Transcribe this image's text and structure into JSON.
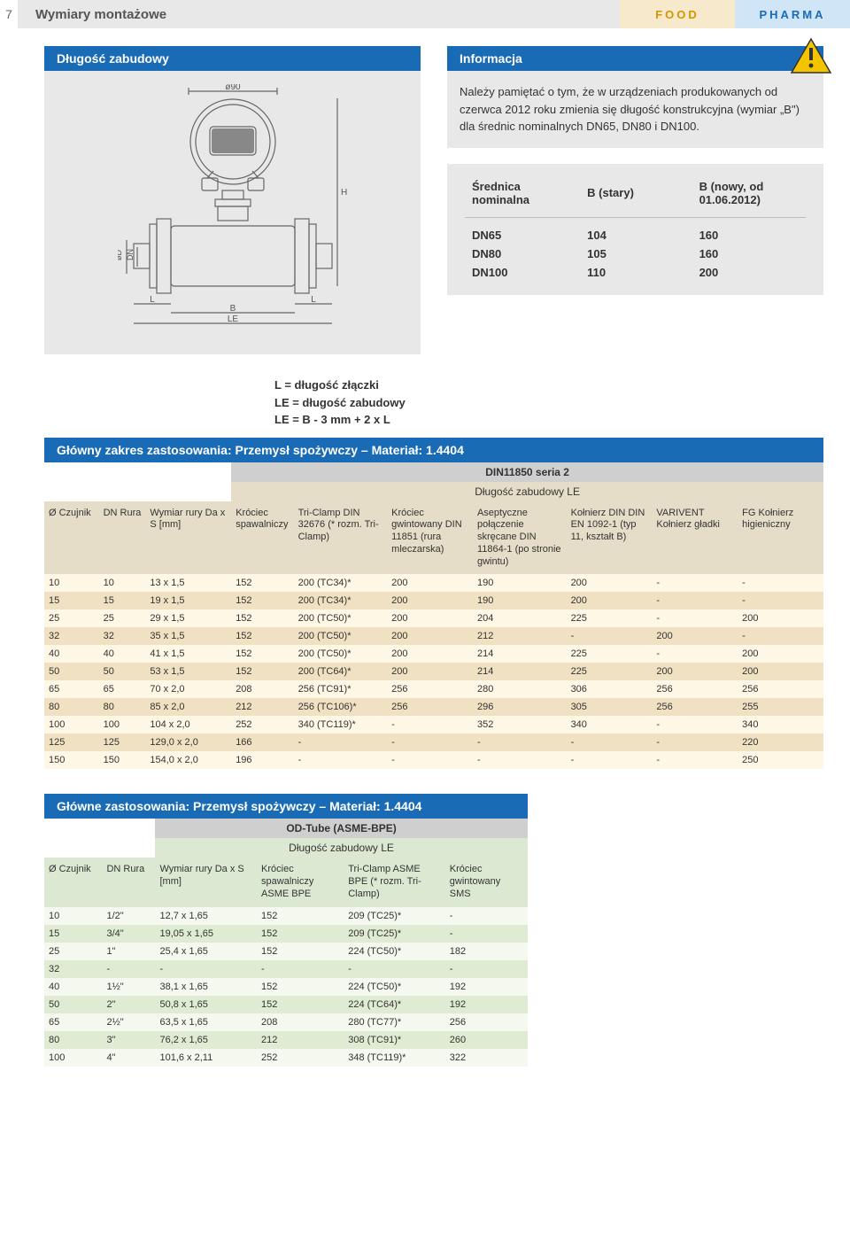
{
  "page_number": "7",
  "header_title": "Wymiary montażowe",
  "food_label": "FOOD",
  "pharma_label": "PHARMA",
  "box_left_title": "Długość zabudowy",
  "info": {
    "title": "Informacja",
    "body": "Należy pamiętać o tym, że w urządzeniach produkowanych od czerwca 2012 roku zmienia się długość konstrukcyjna (wymiar „B\") dla średnic nominalnych DN65, DN80 i DN100."
  },
  "dim_table": {
    "col1": "Średnica nominalna",
    "col2": "B (stary)",
    "col3": "B (nowy, od 01.06.2012)",
    "rows": [
      [
        "DN65",
        "104",
        "160"
      ],
      [
        "DN80",
        "105",
        "160"
      ],
      [
        "DN100",
        "110",
        "200"
      ]
    ]
  },
  "legend": {
    "l1": "L = długość złączki",
    "l2": "LE = długość zabudowy",
    "l3": "LE = B - 3 mm + 2 x L"
  },
  "table1": {
    "title": "Główny zakres zastosowania: Przemysł spożywczy – Materiał: 1.4404",
    "sub1": "DIN11850 seria 2",
    "sub2": "Długość zabudowy LE",
    "cols": [
      "Ø Czujnik",
      "DN Rura",
      "Wymiar rury Da x S [mm]",
      "Króciec spawalniczy",
      "Tri-Clamp DIN 32676 (* rozm. Tri-Clamp)",
      "Króciec gwintowany DIN 11851 (rura mleczarska)",
      "Aseptyczne połączenie skręcane DIN 11864-1 (po stronie gwintu)",
      "Kołnierz DIN DIN EN 1092-1 (typ 11, kształt B)",
      "VARIVENT Kołnierz gładki",
      "FG Kołnierz higieniczny"
    ],
    "rows": [
      [
        "10",
        "10",
        "13 x 1,5",
        "152",
        "200 (TC34)*",
        "200",
        "190",
        "200",
        "-",
        "-"
      ],
      [
        "15",
        "15",
        "19 x 1,5",
        "152",
        "200 (TC34)*",
        "200",
        "190",
        "200",
        "-",
        "-"
      ],
      [
        "25",
        "25",
        "29 x 1,5",
        "152",
        "200 (TC50)*",
        "200",
        "204",
        "225",
        "-",
        "200"
      ],
      [
        "32",
        "32",
        "35 x 1,5",
        "152",
        "200 (TC50)*",
        "200",
        "212",
        "-",
        "200",
        "-"
      ],
      [
        "40",
        "40",
        "41 x 1,5",
        "152",
        "200 (TC50)*",
        "200",
        "214",
        "225",
        "-",
        "200"
      ],
      [
        "50",
        "50",
        "53 x 1,5",
        "152",
        "200 (TC64)*",
        "200",
        "214",
        "225",
        "200",
        "200"
      ],
      [
        "65",
        "65",
        "70 x 2,0",
        "208",
        "256 (TC91)*",
        "256",
        "280",
        "306",
        "256",
        "256"
      ],
      [
        "80",
        "80",
        "85 x 2,0",
        "212",
        "256 (TC106)*",
        "256",
        "296",
        "305",
        "256",
        "255"
      ],
      [
        "100",
        "100",
        "104 x 2,0",
        "252",
        "340 (TC119)*",
        "-",
        "352",
        "340",
        "-",
        "340"
      ],
      [
        "125",
        "125",
        "129,0 x 2,0",
        "166",
        "-",
        "-",
        "-",
        "-",
        "-",
        "220"
      ],
      [
        "150",
        "150",
        "154,0 x 2,0",
        "196",
        "-",
        "-",
        "-",
        "-",
        "-",
        "250"
      ]
    ]
  },
  "table2": {
    "title": "Główne zastosowania: Przemysł spożywczy – Materiał: 1.4404",
    "sub1": "OD-Tube (ASME-BPE)",
    "sub2": "Długość zabudowy LE",
    "cols": [
      "Ø Czujnik",
      "DN Rura",
      "Wymiar rury Da x S [mm]",
      "Króciec spawalniczy ASME BPE",
      "Tri-Clamp ASME BPE (* rozm. Tri-Clamp)",
      "Króciec gwintowany SMS"
    ],
    "rows": [
      [
        "10",
        "1/2\"",
        "12,7 x 1,65",
        "152",
        "209 (TC25)*",
        "-"
      ],
      [
        "15",
        "3/4\"",
        "19,05 x 1,65",
        "152",
        "209 (TC25)*",
        "-"
      ],
      [
        "25",
        "1\"",
        "25,4 x 1,65",
        "152",
        "224 (TC50)*",
        "182"
      ],
      [
        "32",
        "-",
        "-",
        "-",
        "-",
        "-"
      ],
      [
        "40",
        "1½\"",
        "38,1 x 1,65",
        "152",
        "224 (TC50)*",
        "192"
      ],
      [
        "50",
        "2\"",
        "50,8 x 1,65",
        "152",
        "224 (TC64)*",
        "192"
      ],
      [
        "65",
        "2½\"",
        "63,5 x 1,65",
        "208",
        "280 (TC77)*",
        "256"
      ],
      [
        "80",
        "3\"",
        "76,2 x 1,65",
        "212",
        "308 (TC91)*",
        "260"
      ],
      [
        "100",
        "4\"",
        "101,6 x 2,11",
        "252",
        "348 (TC119)*",
        "322"
      ]
    ]
  },
  "diagram_labels": {
    "d90": "ø90",
    "H": "H",
    "L": "L",
    "B": "B",
    "LE": "LE",
    "dD": "øD",
    "DN": "DN"
  }
}
